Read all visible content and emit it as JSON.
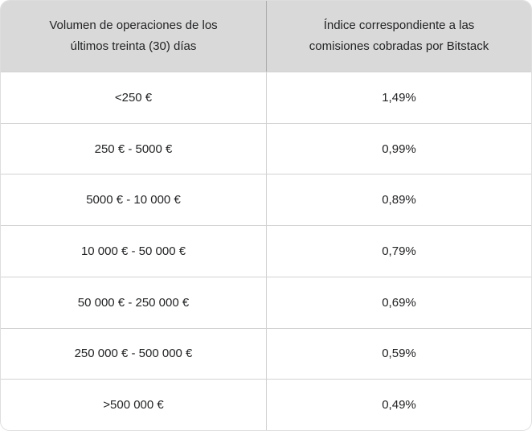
{
  "table": {
    "columns": [
      {
        "label": "Volumen de operaciones de los últimos treinta (30) días"
      },
      {
        "label": "Índice correspondiente a las comisiones cobradas por Bitstack"
      }
    ],
    "rows": [
      {
        "volume": "<250 €",
        "fee": "1,49%"
      },
      {
        "volume": "250 € - 5000 €",
        "fee": "0,99%"
      },
      {
        "volume": "5000 € - 10 000 €",
        "fee": "0,89%"
      },
      {
        "volume": "10 000 € - 50 000 €",
        "fee": "0,79%"
      },
      {
        "volume": "50 000 € - 250 000 €",
        "fee": "0,69%"
      },
      {
        "volume": "250 000 € - 500 000 €",
        "fee": "0,59%"
      },
      {
        "volume": ">500 000 €",
        "fee": "0,49%"
      }
    ]
  },
  "colors": {
    "header_background": "#d9d9d9",
    "header_divider": "#ababab",
    "row_border": "#d2d2d2",
    "outer_border": "#dedede",
    "text": "#222325",
    "row_background": "#ffffff"
  }
}
